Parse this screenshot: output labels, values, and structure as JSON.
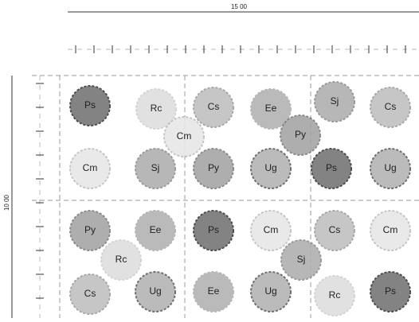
{
  "dimensions": {
    "width": "15 00",
    "height": "10 00"
  },
  "plants": [
    "Ps",
    "Rc",
    "Cs",
    "Ee",
    "Sj",
    "Cs",
    "Cm",
    "Py",
    "Cm",
    "Sj",
    "Py",
    "Ug",
    "Ps",
    "Ug",
    "Py",
    "Ee",
    "Ps",
    "Cm",
    "Cs",
    "Cm",
    "Rc",
    "Sj",
    "Cs",
    "Ug",
    "Ee",
    "Ug",
    "Rc",
    "Ps"
  ]
}
